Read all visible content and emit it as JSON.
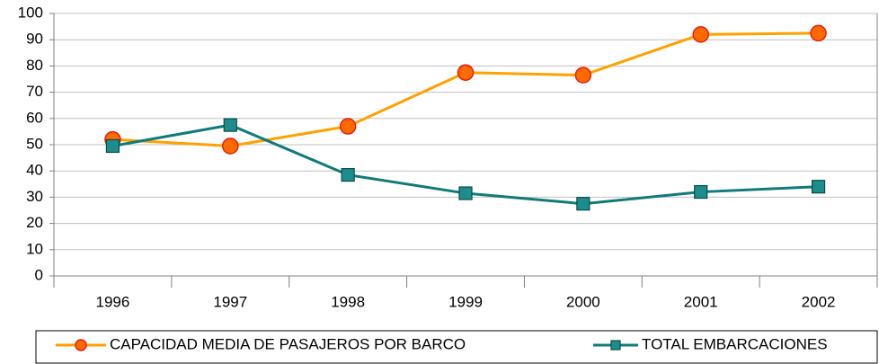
{
  "chart_data": {
    "type": "line",
    "categories": [
      "1996",
      "1997",
      "1998",
      "1999",
      "2000",
      "2001",
      "2002"
    ],
    "series": [
      {
        "name": "CAPACIDAD MEDIA DE PASAJEROS POR BARCO",
        "color": "#ffa200",
        "marker": "circle",
        "values": [
          52,
          49.5,
          57,
          77.5,
          76.5,
          92,
          92.5
        ]
      },
      {
        "name": "TOTAL EMBARCACIONES",
        "color": "#117a7a",
        "marker": "square",
        "values": [
          49.5,
          57.5,
          38.5,
          31.5,
          27.5,
          32,
          34
        ]
      }
    ],
    "ylim": [
      0,
      100
    ],
    "yticks": [
      0,
      10,
      20,
      30,
      40,
      50,
      60,
      70,
      80,
      90,
      100
    ],
    "grid": true,
    "legend": "bottom"
  }
}
